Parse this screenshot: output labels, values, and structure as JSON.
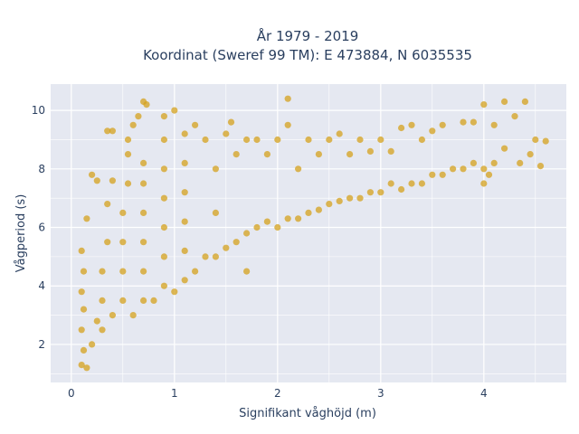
{
  "chart_data": {
    "type": "scatter",
    "title_line1": "År 1979 - 2019",
    "title_line2": "Koordinat (Sweref 99 TM): E 473884, N 6035535",
    "xlabel": "Signifikant våghöjd (m)",
    "ylabel": "Vågperiod (s)",
    "xlim": [
      -0.2,
      4.8
    ],
    "ylim": [
      0.7,
      10.9
    ],
    "x_ticks": [
      0,
      1,
      2,
      3,
      4
    ],
    "x_tick_labels": [
      "0",
      "1",
      "2",
      "3",
      "4"
    ],
    "y_ticks": [
      2,
      4,
      6,
      8,
      10
    ],
    "y_tick_labels": [
      "2",
      "4",
      "6",
      "8",
      "10"
    ],
    "grid": true,
    "marker_color": "#d4a21c",
    "plot_bgcolor": "#e5e8f1",
    "series": [
      {
        "points": [
          [
            0.1,
            1.3
          ],
          [
            0.12,
            1.8
          ],
          [
            0.1,
            2.5
          ],
          [
            0.12,
            3.2
          ],
          [
            0.1,
            3.8
          ],
          [
            0.12,
            4.5
          ],
          [
            0.1,
            5.2
          ],
          [
            0.15,
            6.3
          ],
          [
            0.2,
            7.8
          ],
          [
            0.25,
            7.6
          ],
          [
            0.15,
            1.2
          ],
          [
            0.2,
            2.0
          ],
          [
            0.25,
            2.8
          ],
          [
            0.3,
            3.5
          ],
          [
            0.3,
            4.5
          ],
          [
            0.35,
            5.5
          ],
          [
            0.35,
            6.8
          ],
          [
            0.4,
            7.6
          ],
          [
            0.35,
            9.3
          ],
          [
            0.4,
            9.3
          ],
          [
            0.3,
            2.5
          ],
          [
            0.4,
            3.0
          ],
          [
            0.5,
            3.5
          ],
          [
            0.5,
            4.5
          ],
          [
            0.5,
            5.5
          ],
          [
            0.5,
            6.5
          ],
          [
            0.55,
            7.5
          ],
          [
            0.55,
            8.5
          ],
          [
            0.55,
            9.0
          ],
          [
            0.6,
            9.5
          ],
          [
            0.6,
            3.0
          ],
          [
            0.7,
            3.5
          ],
          [
            0.7,
            4.5
          ],
          [
            0.7,
            5.5
          ],
          [
            0.7,
            6.5
          ],
          [
            0.7,
            7.5
          ],
          [
            0.7,
            8.2
          ],
          [
            0.7,
            10.3
          ],
          [
            0.73,
            10.2
          ],
          [
            0.65,
            9.8
          ],
          [
            0.8,
            3.5
          ],
          [
            0.9,
            4.0
          ],
          [
            0.9,
            5.0
          ],
          [
            0.9,
            6.0
          ],
          [
            0.9,
            7.0
          ],
          [
            0.9,
            8.0
          ],
          [
            0.9,
            9.0
          ],
          [
            0.9,
            9.8
          ],
          [
            1.0,
            3.8
          ],
          [
            1.0,
            10.0
          ],
          [
            1.1,
            4.2
          ],
          [
            1.1,
            5.2
          ],
          [
            1.1,
            6.2
          ],
          [
            1.1,
            7.2
          ],
          [
            1.1,
            8.2
          ],
          [
            1.1,
            9.2
          ],
          [
            1.2,
            4.5
          ],
          [
            1.2,
            9.5
          ],
          [
            1.3,
            5.0
          ],
          [
            1.3,
            9.0
          ],
          [
            1.4,
            5.0
          ],
          [
            1.4,
            6.5
          ],
          [
            1.4,
            8.0
          ],
          [
            1.5,
            5.3
          ],
          [
            1.5,
            9.2
          ],
          [
            1.55,
            9.6
          ],
          [
            1.6,
            5.5
          ],
          [
            1.6,
            8.5
          ],
          [
            1.7,
            5.8
          ],
          [
            1.7,
            9.0
          ],
          [
            1.7,
            4.5
          ],
          [
            1.8,
            6.0
          ],
          [
            1.8,
            9.0
          ],
          [
            1.9,
            6.2
          ],
          [
            1.9,
            8.5
          ],
          [
            2.0,
            6.0
          ],
          [
            2.0,
            9.0
          ],
          [
            2.1,
            6.3
          ],
          [
            2.1,
            9.5
          ],
          [
            2.1,
            10.4
          ],
          [
            2.2,
            6.3
          ],
          [
            2.2,
            8.0
          ],
          [
            2.3,
            6.5
          ],
          [
            2.3,
            9.0
          ],
          [
            2.4,
            6.6
          ],
          [
            2.4,
            8.5
          ],
          [
            2.5,
            6.8
          ],
          [
            2.5,
            9.0
          ],
          [
            2.6,
            6.9
          ],
          [
            2.6,
            9.2
          ],
          [
            2.7,
            7.0
          ],
          [
            2.7,
            8.5
          ],
          [
            2.8,
            7.0
          ],
          [
            2.8,
            9.0
          ],
          [
            2.9,
            7.2
          ],
          [
            2.9,
            8.6
          ],
          [
            3.0,
            7.2
          ],
          [
            3.0,
            9.0
          ],
          [
            3.1,
            7.5
          ],
          [
            3.1,
            8.6
          ],
          [
            3.2,
            7.3
          ],
          [
            3.2,
            9.4
          ],
          [
            3.3,
            7.5
          ],
          [
            3.3,
            9.5
          ],
          [
            3.4,
            7.5
          ],
          [
            3.4,
            9.0
          ],
          [
            3.5,
            7.8
          ],
          [
            3.5,
            9.3
          ],
          [
            3.6,
            7.8
          ],
          [
            3.6,
            9.5
          ],
          [
            3.7,
            8.0
          ],
          [
            3.8,
            8.0
          ],
          [
            3.8,
            9.6
          ],
          [
            3.9,
            8.2
          ],
          [
            3.9,
            9.6
          ],
          [
            4.0,
            8.0
          ],
          [
            4.0,
            10.2
          ],
          [
            4.05,
            7.8
          ],
          [
            4.1,
            9.5
          ],
          [
            4.2,
            8.7
          ],
          [
            4.2,
            10.3
          ],
          [
            4.3,
            9.8
          ],
          [
            4.35,
            8.2
          ],
          [
            4.4,
            10.3
          ],
          [
            4.45,
            8.5
          ],
          [
            4.5,
            9.0
          ],
          [
            4.55,
            8.1
          ],
          [
            4.6,
            8.95
          ],
          [
            4.0,
            7.5
          ],
          [
            4.1,
            8.2
          ]
        ]
      }
    ]
  }
}
